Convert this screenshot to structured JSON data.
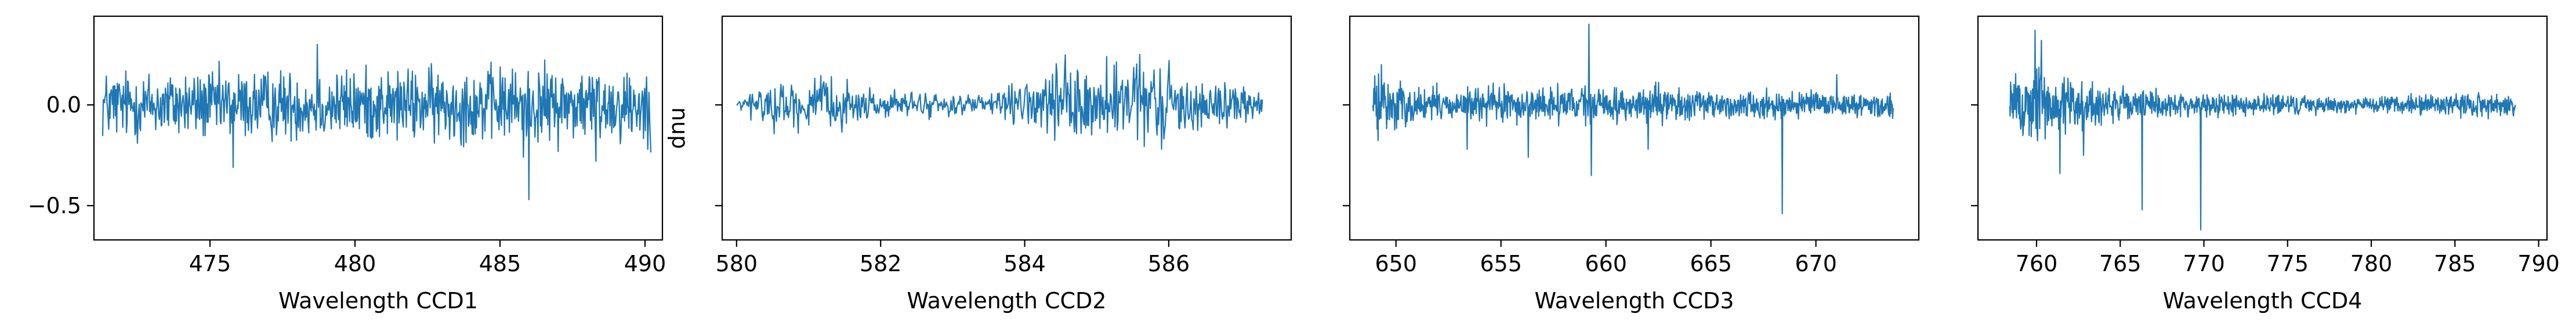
{
  "chart_data": [
    {
      "type": "line",
      "xlabel": "Wavelength CCD1",
      "ylabel": "",
      "xlim": [
        471.0,
        490.6
      ],
      "ylim": [
        -0.67,
        0.44
      ],
      "xticks": [
        475,
        480,
        485,
        490
      ],
      "xtick_labels": [
        "475",
        "480",
        "485",
        "490"
      ],
      "yticks": [
        -0.5,
        0.0
      ],
      "ytick_labels": [
        "−0.5",
        "0.0"
      ],
      "show_ytick_labels": true,
      "grid": false,
      "color": "#1f77b4",
      "series": [
        {
          "x_range": [
            471.3,
            490.2
          ],
          "n_points": 900,
          "amplitude": 0.13,
          "envelope_x": [
            471.3,
            475,
            480,
            485,
            490.2
          ],
          "envelope_amp": [
            0.12,
            0.12,
            0.12,
            0.13,
            0.13
          ],
          "spikes": [
            {
              "x": 475.8,
              "y": -0.31
            },
            {
              "x": 478.7,
              "y": 0.3
            },
            {
              "x": 485.8,
              "y": -0.26
            },
            {
              "x": 486.0,
              "y": -0.47
            },
            {
              "x": 488.3,
              "y": -0.28
            },
            {
              "x": 490.1,
              "y": -0.22
            }
          ]
        }
      ]
    },
    {
      "type": "line",
      "xlabel": "Wavelength CCD2",
      "ylabel": "dnu",
      "xlim": [
        579.8,
        587.7
      ],
      "ylim": [
        -0.67,
        0.44
      ],
      "xticks": [
        580,
        582,
        584,
        586
      ],
      "xtick_labels": [
        "580",
        "582",
        "584",
        "586"
      ],
      "yticks": [
        -0.5,
        0.0
      ],
      "ytick_labels": [
        "−0.5",
        "0.0"
      ],
      "show_ytick_labels": false,
      "grid": false,
      "color": "#1f77b4",
      "series": [
        {
          "x_range": [
            580.0,
            587.3
          ],
          "n_points": 700,
          "amplitude": 0.06,
          "envelope_x": [
            580.0,
            580.3,
            581.0,
            582.0,
            583.5,
            584.5,
            585.5,
            587.3
          ],
          "envelope_amp": [
            0.01,
            0.07,
            0.09,
            0.05,
            0.03,
            0.13,
            0.14,
            0.05
          ],
          "spikes": [
            {
              "x": 585.6,
              "y": 0.25
            },
            {
              "x": 585.9,
              "y": -0.22
            },
            {
              "x": 586.0,
              "y": 0.22
            }
          ]
        }
      ]
    },
    {
      "type": "line",
      "xlabel": "Wavelength CCD3",
      "ylabel": "",
      "xlim": [
        647.8,
        674.9
      ],
      "ylim": [
        -0.67,
        0.44
      ],
      "xticks": [
        650,
        655,
        660,
        665,
        670
      ],
      "xtick_labels": [
        "650",
        "655",
        "660",
        "665",
        "670"
      ],
      "yticks": [
        -0.5,
        0.0
      ],
      "ytick_labels": [
        "−0.5",
        "0.0"
      ],
      "show_ytick_labels": false,
      "grid": false,
      "color": "#1f77b4",
      "series": [
        {
          "x_range": [
            648.9,
            673.7
          ],
          "n_points": 1100,
          "amplitude": 0.05,
          "envelope_x": [
            648.9,
            649.5,
            651.0,
            655.0,
            660.0,
            665.0,
            670.0,
            673.7
          ],
          "envelope_amp": [
            0.1,
            0.1,
            0.06,
            0.06,
            0.06,
            0.05,
            0.04,
            0.04
          ],
          "spikes": [
            {
              "x": 649.3,
              "y": 0.2
            },
            {
              "x": 653.4,
              "y": -0.22
            },
            {
              "x": 656.3,
              "y": -0.26
            },
            {
              "x": 659.2,
              "y": 0.4
            },
            {
              "x": 659.3,
              "y": -0.35
            },
            {
              "x": 662.0,
              "y": -0.22
            },
            {
              "x": 668.4,
              "y": -0.54
            },
            {
              "x": 671.0,
              "y": 0.15
            }
          ]
        }
      ]
    },
    {
      "type": "line",
      "xlabel": "Wavelength CCD4",
      "ylabel": "",
      "xlim": [
        756.5,
        790.5
      ],
      "ylim": [
        -0.67,
        0.44
      ],
      "xticks": [
        760,
        765,
        770,
        775,
        780,
        785,
        790
      ],
      "xtick_labels": [
        "760",
        "765",
        "770",
        "775",
        "780",
        "785",
        "790"
      ],
      "yticks": [
        -0.5,
        0.0
      ],
      "ytick_labels": [
        "−0.5",
        "0.0"
      ],
      "show_ytick_labels": false,
      "grid": false,
      "color": "#1f77b4",
      "series": [
        {
          "x_range": [
            758.4,
            788.6
          ],
          "n_points": 1200,
          "amplitude": 0.05,
          "envelope_x": [
            758.4,
            760.0,
            762.5,
            766.0,
            770.0,
            780.0,
            786.0,
            788.6
          ],
          "envelope_amp": [
            0.1,
            0.14,
            0.09,
            0.05,
            0.04,
            0.025,
            0.04,
            0.04
          ],
          "spikes": [
            {
              "x": 759.9,
              "y": 0.37
            },
            {
              "x": 760.3,
              "y": 0.32
            },
            {
              "x": 761.4,
              "y": -0.34
            },
            {
              "x": 762.8,
              "y": -0.25
            },
            {
              "x": 766.3,
              "y": -0.52
            },
            {
              "x": 769.8,
              "y": -0.62
            }
          ]
        }
      ]
    }
  ]
}
